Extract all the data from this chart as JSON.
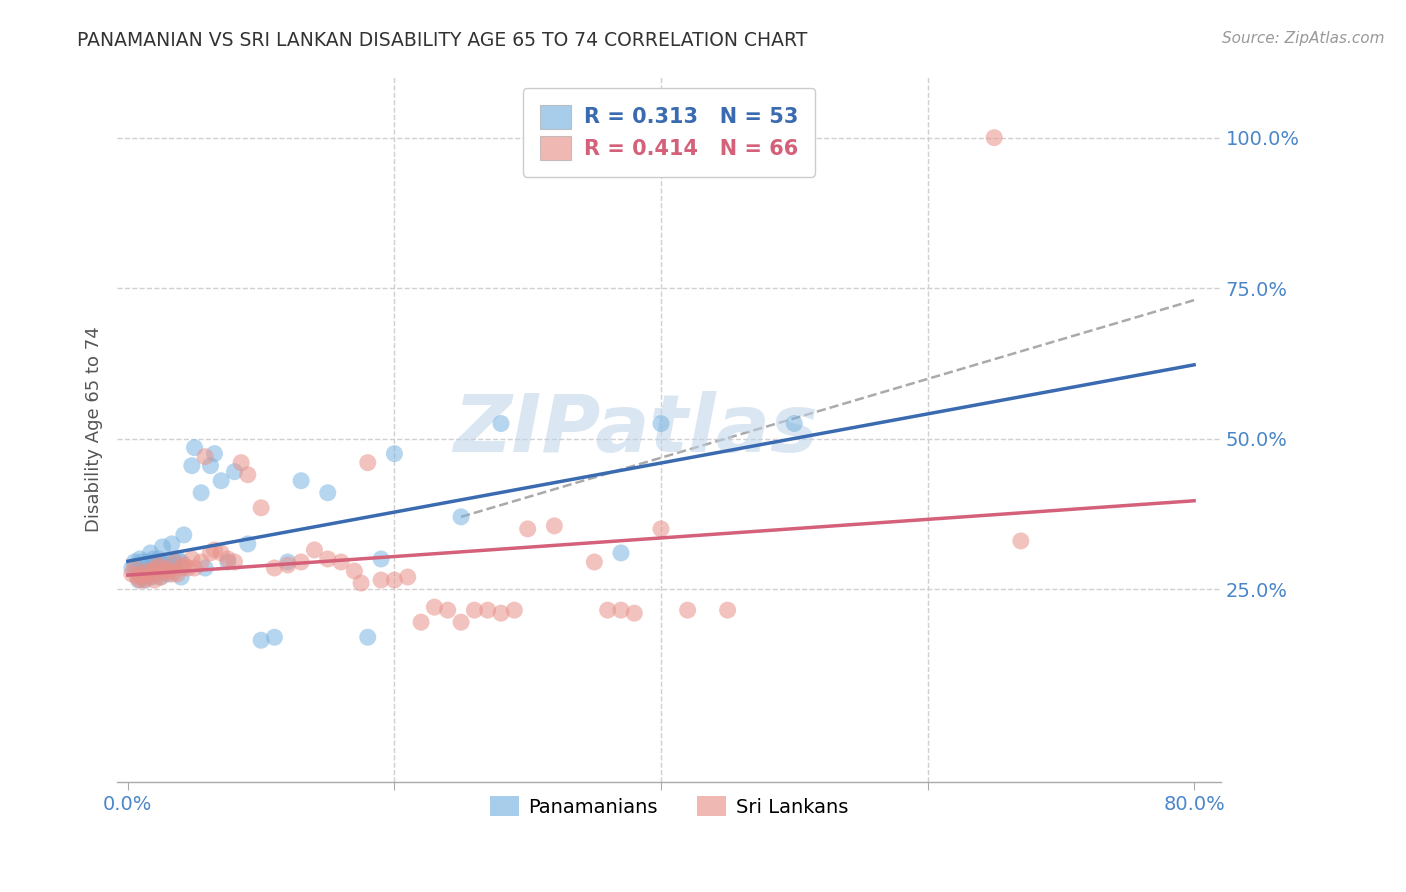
{
  "title": "PANAMANIAN VS SRI LANKAN DISABILITY AGE 65 TO 74 CORRELATION CHART",
  "source": "Source: ZipAtlas.com",
  "ylabel": "Disability Age 65 to 74",
  "xlim": [
    -0.008,
    0.82
  ],
  "ylim": [
    -0.07,
    1.1
  ],
  "xtick_pos": [
    0.0,
    0.2,
    0.4,
    0.6,
    0.8
  ],
  "xtick_labels": [
    "0.0%",
    "",
    "",
    "",
    "80.0%"
  ],
  "ytick_right_pos": [
    1.0,
    0.75,
    0.5,
    0.25
  ],
  "ytick_right_labels": [
    "100.0%",
    "75.0%",
    "50.0%",
    "25.0%"
  ],
  "blue_color": "#7ab3e0",
  "pink_color": "#e8928a",
  "blue_line_color": "#3a6ab0",
  "pink_line_color": "#d4607a",
  "gray_dash_color": "#aaaaaa",
  "grid_color": "#d0d0d0",
  "legend_R_blue": "0.313",
  "legend_N_blue": "53",
  "legend_R_pink": "0.414",
  "legend_N_pink": "66",
  "blue_scatter_x": [
    0.003,
    0.005,
    0.007,
    0.008,
    0.009,
    0.01,
    0.01,
    0.012,
    0.013,
    0.015,
    0.015,
    0.017,
    0.018,
    0.019,
    0.02,
    0.02,
    0.022,
    0.023,
    0.024,
    0.025,
    0.026,
    0.028,
    0.03,
    0.031,
    0.033,
    0.035,
    0.037,
    0.04,
    0.04,
    0.042,
    0.048,
    0.05,
    0.055,
    0.058,
    0.062,
    0.065,
    0.07,
    0.075,
    0.08,
    0.09,
    0.1,
    0.11,
    0.12,
    0.13,
    0.15,
    0.18,
    0.19,
    0.2,
    0.25,
    0.28,
    0.37,
    0.4,
    0.5
  ],
  "blue_scatter_y": [
    0.285,
    0.295,
    0.28,
    0.265,
    0.3,
    0.27,
    0.295,
    0.28,
    0.265,
    0.28,
    0.295,
    0.31,
    0.27,
    0.3,
    0.275,
    0.295,
    0.285,
    0.3,
    0.27,
    0.295,
    0.32,
    0.29,
    0.275,
    0.295,
    0.325,
    0.295,
    0.3,
    0.27,
    0.295,
    0.34,
    0.455,
    0.485,
    0.41,
    0.285,
    0.455,
    0.475,
    0.43,
    0.295,
    0.445,
    0.325,
    0.165,
    0.17,
    0.295,
    0.43,
    0.41,
    0.17,
    0.3,
    0.475,
    0.37,
    0.525,
    0.31,
    0.525,
    0.525
  ],
  "pink_scatter_x": [
    0.003,
    0.005,
    0.007,
    0.009,
    0.01,
    0.012,
    0.014,
    0.016,
    0.018,
    0.02,
    0.021,
    0.022,
    0.023,
    0.025,
    0.027,
    0.029,
    0.031,
    0.033,
    0.035,
    0.037,
    0.04,
    0.042,
    0.045,
    0.048,
    0.05,
    0.055,
    0.058,
    0.062,
    0.065,
    0.07,
    0.075,
    0.08,
    0.085,
    0.09,
    0.1,
    0.11,
    0.12,
    0.13,
    0.14,
    0.15,
    0.16,
    0.17,
    0.175,
    0.18,
    0.19,
    0.2,
    0.21,
    0.22,
    0.23,
    0.24,
    0.25,
    0.26,
    0.27,
    0.28,
    0.29,
    0.3,
    0.32,
    0.35,
    0.36,
    0.37,
    0.38,
    0.4,
    0.42,
    0.45,
    0.65,
    0.67
  ],
  "pink_scatter_y": [
    0.275,
    0.285,
    0.27,
    0.265,
    0.275,
    0.265,
    0.28,
    0.27,
    0.28,
    0.265,
    0.285,
    0.275,
    0.29,
    0.27,
    0.285,
    0.28,
    0.28,
    0.275,
    0.295,
    0.275,
    0.285,
    0.29,
    0.285,
    0.3,
    0.285,
    0.295,
    0.47,
    0.31,
    0.315,
    0.31,
    0.3,
    0.295,
    0.46,
    0.44,
    0.385,
    0.285,
    0.29,
    0.295,
    0.315,
    0.3,
    0.295,
    0.28,
    0.26,
    0.46,
    0.265,
    0.265,
    0.27,
    0.195,
    0.22,
    0.215,
    0.195,
    0.215,
    0.215,
    0.21,
    0.215,
    0.35,
    0.355,
    0.295,
    0.215,
    0.215,
    0.21,
    0.35,
    0.215,
    0.215,
    1.0,
    0.33
  ],
  "gray_line_x0": 0.25,
  "gray_line_y0": 0.37,
  "gray_line_x1": 0.8,
  "gray_line_y1": 0.73
}
